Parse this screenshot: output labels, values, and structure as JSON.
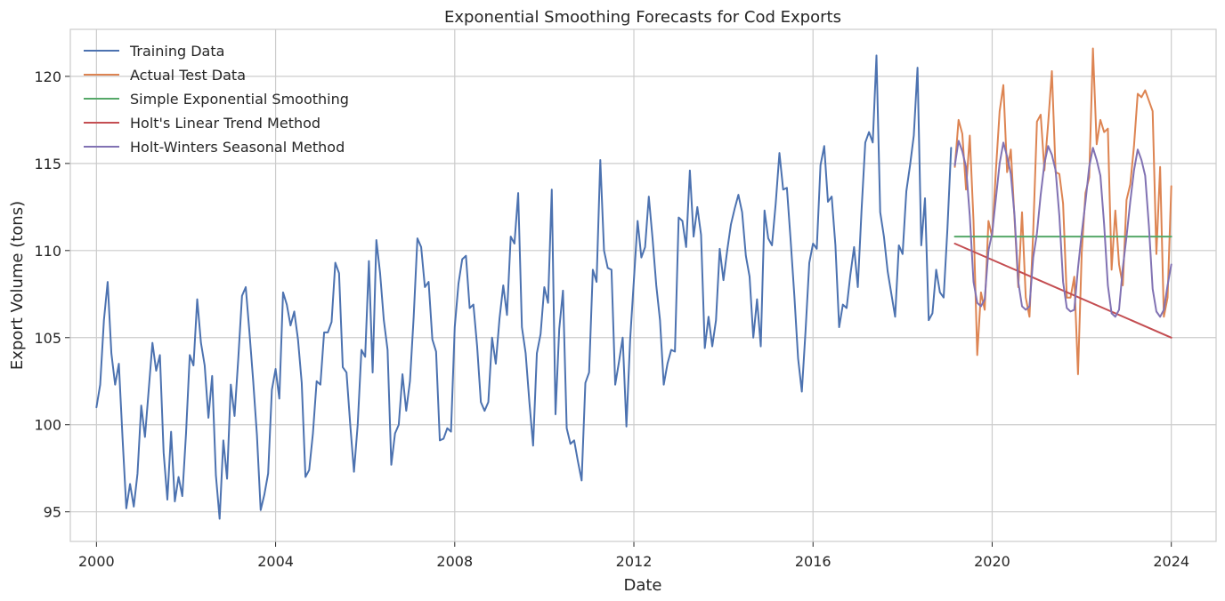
{
  "chart_data": {
    "type": "line",
    "title": "Exponential Smoothing Forecasts for Cod Exports",
    "xlabel": "Date",
    "ylabel": "Export Volume (tons)",
    "x_ticks": [
      2000,
      2004,
      2008,
      2012,
      2016,
      2020,
      2024
    ],
    "y_ticks": [
      95,
      100,
      105,
      110,
      115,
      120
    ],
    "xlim": [
      "1999-06",
      "2025-01"
    ],
    "ylim": [
      93.3,
      122.7
    ],
    "grid": true,
    "legend_position": "top-left",
    "series": [
      {
        "name": "Training Data",
        "color": "#4c72b0",
        "start": "2000-01",
        "step": "monthly",
        "values": [
          101.0,
          102.3,
          106.0,
          108.2,
          104.1,
          102.3,
          103.5,
          99.2,
          95.2,
          96.6,
          95.3,
          97.2,
          101.1,
          99.3,
          102.0,
          104.7,
          103.1,
          104.0,
          98.4,
          95.7,
          99.6,
          95.6,
          97.0,
          95.9,
          99.5,
          104.0,
          103.4,
          107.2,
          104.7,
          103.4,
          100.4,
          102.8,
          97.1,
          94.6,
          99.1,
          96.9,
          102.3,
          100.5,
          103.8,
          107.4,
          107.9,
          105.3,
          102.5,
          99.4,
          95.1,
          96.0,
          97.2,
          102.0,
          103.2,
          101.5,
          107.6,
          106.9,
          105.7,
          106.5,
          104.9,
          102.4,
          97.0,
          97.4,
          99.5,
          102.5,
          102.3,
          105.3,
          105.3,
          105.9,
          109.3,
          108.7,
          103.3,
          103.0,
          100.0,
          97.3,
          100.0,
          104.3,
          103.9,
          109.4,
          103.0,
          110.6,
          108.7,
          106.0,
          104.3,
          97.7,
          99.5,
          100.0,
          102.9,
          100.8,
          102.5,
          106.2,
          110.7,
          110.2,
          107.9,
          108.2,
          104.9,
          104.2,
          99.1,
          99.2,
          99.8,
          99.6,
          105.6,
          108.1,
          109.5,
          109.7,
          106.7,
          106.9,
          104.5,
          101.3,
          100.8,
          101.3,
          105.0,
          103.5,
          106.1,
          108.0,
          106.3,
          110.8,
          110.4,
          113.3,
          105.6,
          104.1,
          101.3,
          98.8,
          104.1,
          105.2,
          107.9,
          107.0,
          113.5,
          100.6,
          105.5,
          107.7,
          99.8,
          98.9,
          99.1,
          97.9,
          96.8,
          102.4,
          103.0,
          108.9,
          108.2,
          115.2,
          110.0,
          109.0,
          108.9,
          102.3,
          103.6,
          105.0,
          99.9,
          104.9,
          108.3,
          111.7,
          109.6,
          110.2,
          113.1,
          110.7,
          108.0,
          106.0,
          102.3,
          103.5,
          104.3,
          104.2,
          111.9,
          111.7,
          110.2,
          114.6,
          110.8,
          112.5,
          110.9,
          104.4,
          106.2,
          104.5,
          106.0,
          110.1,
          108.3,
          110.0,
          111.5,
          112.4,
          113.2,
          112.2,
          109.7,
          108.5,
          105.0,
          107.2,
          104.5,
          112.3,
          110.7,
          110.3,
          112.7,
          115.6,
          113.5,
          113.6,
          110.6,
          107.4,
          103.8,
          101.9,
          105.4,
          109.3,
          110.4,
          110.1,
          114.9,
          116.0,
          112.8,
          113.1,
          110.3,
          105.6,
          106.9,
          106.7,
          108.6,
          110.2,
          107.9,
          112.3,
          116.2,
          116.8,
          116.2,
          121.2,
          112.2,
          110.8,
          108.8,
          107.5,
          106.2,
          110.3,
          109.8,
          113.4,
          114.9,
          116.6,
          120.5,
          110.3,
          113.0,
          106.0,
          106.4,
          108.9,
          107.6,
          107.3,
          111.2,
          115.9
        ]
      },
      {
        "name": "Actual Test Data",
        "color": "#dd8452",
        "start": "2019-03",
        "step": "monthly",
        "values": [
          114.8,
          117.5,
          116.7,
          113.5,
          116.6,
          111.7,
          104.0,
          107.6,
          106.6,
          111.7,
          110.8,
          114.6,
          118.0,
          119.5,
          114.5,
          115.8,
          111.8,
          107.9,
          112.2,
          107.3,
          106.2,
          111.1,
          117.4,
          117.8,
          114.6,
          117.3,
          120.3,
          114.5,
          114.4,
          112.7,
          107.3,
          107.3,
          108.5,
          102.9,
          109.9,
          113.3,
          114.2,
          121.6,
          116.1,
          117.5,
          116.8,
          117.0,
          108.9,
          112.3,
          109.2,
          108.0,
          112.9,
          113.8,
          116.0,
          119.0,
          118.8,
          119.2,
          118.6,
          118.0,
          109.8,
          114.8,
          106.2,
          107.3,
          113.7
        ]
      },
      {
        "name": "Simple Exponential Smoothing",
        "color": "#55a868",
        "x": [
          "2019-03",
          "2024-01"
        ],
        "values": [
          110.8,
          110.8
        ]
      },
      {
        "name": "Holt's Linear Trend Method",
        "color": "#c44e52",
        "x": [
          "2019-03",
          "2024-01"
        ],
        "values": [
          110.4,
          105.0
        ]
      },
      {
        "name": "Holt-Winters Seasonal Method",
        "color": "#8172b3",
        "start": "2019-03",
        "step": "monthly",
        "values": [
          114.9,
          116.3,
          115.7,
          114.8,
          112.0,
          108.2,
          107.0,
          106.8,
          107.2,
          110.0,
          111.0,
          113.0,
          115.0,
          116.2,
          115.4,
          114.4,
          112.0,
          108.2,
          106.8,
          106.6,
          106.8,
          109.6,
          111.0,
          113.2,
          115.0,
          116.0,
          115.5,
          114.6,
          112.0,
          108.2,
          106.7,
          106.5,
          106.6,
          109.0,
          111.0,
          112.8,
          114.8,
          115.9,
          115.2,
          114.3,
          111.5,
          108.0,
          106.4,
          106.2,
          106.6,
          109.0,
          110.8,
          112.8,
          114.6,
          115.8,
          115.2,
          114.3,
          111.4,
          107.8,
          106.5,
          106.2,
          106.6,
          108.0,
          109.2
        ]
      }
    ]
  }
}
